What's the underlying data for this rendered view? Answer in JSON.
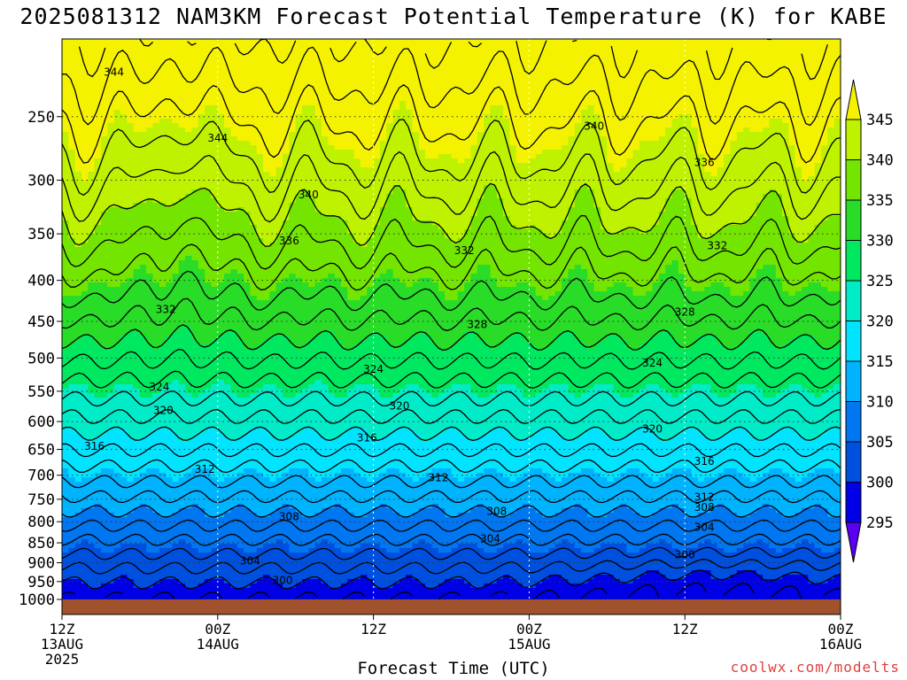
{
  "title": "2025081312 NAM3KM Forecast Potential Temperature (K) for KABE",
  "xlabel": "Forecast Time (UTC)",
  "credit": "coolwx.com/modelts",
  "chart_data": {
    "type": "heatmap",
    "title": "2025081312 NAM3KM Forecast Potential Temperature (K) for KABE",
    "xlabel": "Forecast Time (UTC)",
    "ylabel": "",
    "y_scale": "log-pressure",
    "ylim": [
      1000,
      200
    ],
    "y_ticks": [
      250,
      300,
      350,
      400,
      450,
      500,
      550,
      600,
      650,
      700,
      750,
      800,
      850,
      900,
      950,
      1000
    ],
    "x_ticks": [
      {
        "hour": 0,
        "lines": [
          "12Z",
          "13AUG",
          "2025"
        ]
      },
      {
        "hour": 12,
        "lines": [
          "00Z",
          "14AUG"
        ]
      },
      {
        "hour": 24,
        "lines": [
          "12Z"
        ]
      },
      {
        "hour": 36,
        "lines": [
          "00Z",
          "15AUG"
        ]
      },
      {
        "hour": 48,
        "lines": [
          "12Z"
        ]
      },
      {
        "hour": 60,
        "lines": [
          "00Z",
          "16AUG"
        ]
      }
    ],
    "colorbar": {
      "labels": [
        "345",
        "340",
        "335",
        "330",
        "325",
        "320",
        "315",
        "310",
        "305",
        "300",
        "295"
      ],
      "colors": [
        "#f5f200",
        "#bff200",
        "#74e500",
        "#28dc28",
        "#00e85f",
        "#00ecc8",
        "#00e4ff",
        "#00b3ff",
        "#0076f0",
        "#0050e0",
        "#0000e6",
        "#5a00f0"
      ]
    },
    "grid": true,
    "contour_labels": [
      {
        "value": "344",
        "hour": 4.0,
        "p": 220
      },
      {
        "value": "344",
        "hour": 12.0,
        "p": 266
      },
      {
        "value": "340",
        "hour": 19.0,
        "p": 313
      },
      {
        "value": "340",
        "hour": 41.0,
        "p": 257
      },
      {
        "value": "336",
        "hour": 17.5,
        "p": 357
      },
      {
        "value": "336",
        "hour": 49.5,
        "p": 285
      },
      {
        "value": "332",
        "hour": 8.0,
        "p": 435
      },
      {
        "value": "332",
        "hour": 31.0,
        "p": 367
      },
      {
        "value": "332",
        "hour": 50.5,
        "p": 362
      },
      {
        "value": "328",
        "hour": 32.0,
        "p": 454
      },
      {
        "value": "328",
        "hour": 48.0,
        "p": 438
      },
      {
        "value": "324",
        "hour": 7.5,
        "p": 543
      },
      {
        "value": "324",
        "hour": 24.0,
        "p": 516
      },
      {
        "value": "324",
        "hour": 45.5,
        "p": 507
      },
      {
        "value": "320",
        "hour": 7.8,
        "p": 581
      },
      {
        "value": "320",
        "hour": 26.0,
        "p": 574
      },
      {
        "value": "320",
        "hour": 45.5,
        "p": 613
      },
      {
        "value": "316",
        "hour": 2.5,
        "p": 644
      },
      {
        "value": "316",
        "hour": 23.5,
        "p": 629
      },
      {
        "value": "316",
        "hour": 49.5,
        "p": 673
      },
      {
        "value": "312",
        "hour": 11.0,
        "p": 688
      },
      {
        "value": "312",
        "hour": 29.0,
        "p": 705
      },
      {
        "value": "312",
        "hour": 49.5,
        "p": 746
      },
      {
        "value": "308",
        "hour": 17.5,
        "p": 788
      },
      {
        "value": "308",
        "hour": 33.5,
        "p": 776
      },
      {
        "value": "308",
        "hour": 49.5,
        "p": 768
      },
      {
        "value": "304",
        "hour": 14.5,
        "p": 895
      },
      {
        "value": "304",
        "hour": 33.0,
        "p": 840
      },
      {
        "value": "304",
        "hour": 49.5,
        "p": 813
      },
      {
        "value": "300",
        "hour": 17.0,
        "p": 947
      },
      {
        "value": "300",
        "hour": 48.0,
        "p": 879
      }
    ]
  }
}
